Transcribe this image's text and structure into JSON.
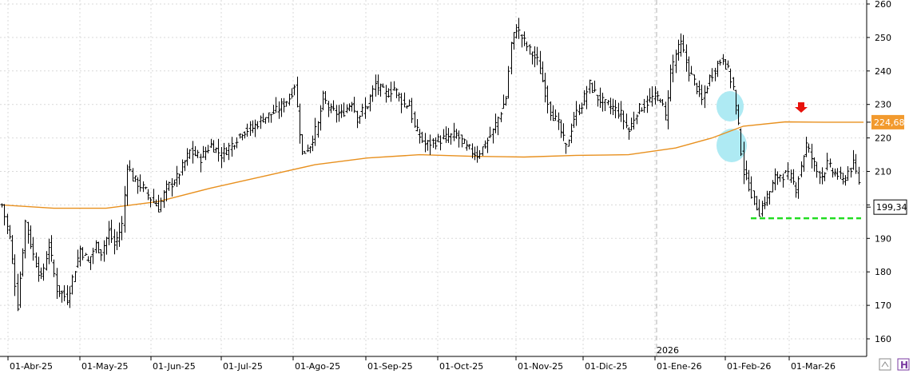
{
  "chart_data": {
    "type": "ohlc",
    "title": "",
    "xlabel": "",
    "ylabel": "",
    "ylim": [
      155,
      262
    ],
    "y_ticks": [
      160,
      170,
      180,
      190,
      200,
      210,
      220,
      230,
      240,
      250,
      260
    ],
    "x_tick_labels": [
      "01-Abr-25",
      "01-May-25",
      "01-Jun-25",
      "01-Jul-25",
      "01-Ago-25",
      "01-Sep-25",
      "01-Oct-25",
      "01-Nov-25",
      "01-Dic-25",
      "01-Ene-26",
      "01-Feb-26",
      "01-Mar-26"
    ],
    "year_marker": "2026",
    "last_price": "199,34",
    "moving_average_label": "224,68",
    "support_level": 196,
    "colors": {
      "bars": "#000000",
      "moving_average": "#e8901e",
      "ma_tag_bg": "#f29a2e",
      "support_line": "#22dd22",
      "arrow": "#e8120c",
      "highlight_circle": "#aeeaf3"
    },
    "series": [
      {
        "kind": "price_anchors",
        "points": [
          [
            0,
            200
          ],
          [
            3,
            190
          ],
          [
            6,
            170
          ],
          [
            9,
            195
          ],
          [
            12,
            185
          ],
          [
            15,
            178
          ],
          [
            18,
            188
          ],
          [
            21,
            175
          ],
          [
            25,
            172
          ],
          [
            30,
            187
          ],
          [
            33,
            183
          ],
          [
            36,
            188
          ],
          [
            38,
            186
          ],
          [
            41,
            192
          ],
          [
            43,
            188
          ],
          [
            46,
            194
          ],
          [
            48,
            212
          ],
          [
            50,
            208
          ],
          [
            54,
            205
          ],
          [
            57,
            202
          ],
          [
            60,
            199
          ],
          [
            63,
            205
          ],
          [
            67,
            208
          ],
          [
            72,
            216
          ],
          [
            76,
            214
          ],
          [
            80,
            218
          ],
          [
            84,
            215
          ],
          [
            88,
            218
          ],
          [
            92,
            222
          ],
          [
            96,
            223
          ],
          [
            100,
            226
          ],
          [
            105,
            228
          ],
          [
            110,
            232
          ],
          [
            112,
            236
          ],
          [
            115,
            215
          ],
          [
            118,
            218
          ],
          [
            121,
            224
          ],
          [
            123,
            232
          ],
          [
            126,
            228
          ],
          [
            130,
            227
          ],
          [
            134,
            231
          ],
          [
            136,
            226
          ],
          [
            140,
            230
          ],
          [
            143,
            236
          ],
          [
            147,
            233
          ],
          [
            150,
            235
          ],
          [
            154,
            230
          ],
          [
            156,
            230
          ],
          [
            158,
            223
          ],
          [
            162,
            218
          ],
          [
            166,
            219
          ],
          [
            170,
            220
          ],
          [
            174,
            221
          ],
          [
            178,
            217
          ],
          [
            182,
            215
          ],
          [
            185,
            218
          ],
          [
            188,
            222
          ],
          [
            191,
            228
          ],
          [
            193,
            232
          ],
          [
            195,
            248
          ],
          [
            197,
            253
          ],
          [
            199,
            250
          ],
          [
            202,
            246
          ],
          [
            205,
            243
          ],
          [
            208,
            234
          ],
          [
            210,
            228
          ],
          [
            213,
            224
          ],
          [
            216,
            217
          ],
          [
            219,
            226
          ],
          [
            222,
            230
          ],
          [
            225,
            236
          ],
          [
            228,
            232
          ],
          [
            231,
            230
          ],
          [
            234,
            229
          ],
          [
            237,
            227
          ],
          [
            240,
            222
          ],
          [
            243,
            228
          ],
          [
            246,
            230
          ],
          [
            249,
            232
          ],
          [
            252,
            232
          ],
          [
            254,
            226
          ],
          [
            256,
            240
          ],
          [
            258,
            245
          ],
          [
            260,
            248
          ],
          [
            263,
            240
          ],
          [
            266,
            235
          ],
          [
            268,
            231
          ],
          [
            271,
            238
          ],
          [
            274,
            242
          ],
          [
            276,
            244
          ],
          [
            278,
            240
          ],
          [
            280,
            235
          ],
          [
            282,
            223
          ],
          [
            284,
            210
          ],
          [
            286,
            206
          ],
          [
            288,
            201
          ],
          [
            290,
            198
          ],
          [
            292,
            201
          ],
          [
            294,
            204
          ],
          [
            296,
            208
          ],
          [
            298,
            209
          ],
          [
            300,
            209
          ],
          [
            302,
            208
          ],
          [
            304,
            205
          ],
          [
            306,
            212
          ],
          [
            308,
            218
          ],
          [
            310,
            214
          ],
          [
            312,
            210
          ],
          [
            314,
            209
          ],
          [
            316,
            212
          ],
          [
            318,
            210
          ],
          [
            320,
            209
          ],
          [
            322,
            207
          ],
          [
            324,
            210
          ],
          [
            326,
            212
          ],
          [
            328,
            207
          ]
        ]
      },
      {
        "kind": "moving_average_anchors",
        "points": [
          [
            0,
            200
          ],
          [
            20,
            199
          ],
          [
            40,
            199
          ],
          [
            60,
            201
          ],
          [
            80,
            205
          ],
          [
            100,
            208.5
          ],
          [
            120,
            212
          ],
          [
            140,
            214
          ],
          [
            160,
            215
          ],
          [
            180,
            214.5
          ],
          [
            200,
            214.3
          ],
          [
            220,
            214.8
          ],
          [
            240,
            215
          ],
          [
            258,
            217
          ],
          [
            272,
            220
          ],
          [
            284,
            223.5
          ],
          [
            300,
            224.8
          ],
          [
            315,
            224.7
          ],
          [
            330,
            224.7
          ]
        ]
      }
    ]
  }
}
